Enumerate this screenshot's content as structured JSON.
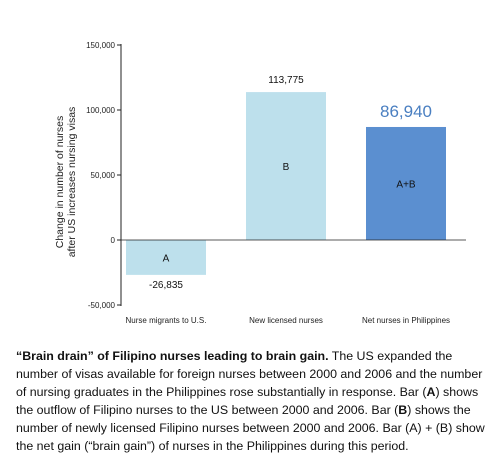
{
  "chart_data": {
    "type": "bar",
    "ylabel_lines": [
      "Change in number of nurses",
      "after US increases nursing visas"
    ],
    "ylim": [
      -50000,
      150000
    ],
    "yticks": [
      -50000,
      0,
      50000,
      100000,
      150000
    ],
    "ytick_labels": [
      "-50,000",
      "0",
      "50,000",
      "100,000",
      "150,000"
    ],
    "categories": [
      "Nurse migrants to U.S.",
      "New licensed nurses",
      "Net nurses in Philippines"
    ],
    "values": [
      -26835,
      113775,
      86940
    ],
    "value_labels": [
      "-26,835",
      "113,775",
      "86,940"
    ],
    "bar_letters": [
      "A",
      "B",
      "A+B"
    ],
    "colors": [
      "#bde0ec",
      "#bde0ec",
      "#5b8fd0"
    ],
    "highlight_color": "#4a7fc1"
  },
  "caption": {
    "lead": "“Brain drain” of Filipino nurses leading to brain gain.",
    "p1": " The US expanded the number of visas available for foreign nurses between 2000 and 2006 and the number of nursing graduates in the Philippines rose substantially in response. Bar (",
    "a1": "A",
    "p2": ") shows the outflow of Filipino nurses to the US between 2000 and 2006. Bar (",
    "b1": "B",
    "p3": ") shows the number of newly licensed Filipino nurses between 2000 and 2006. Bar (A) + (B) show the net gain (“brain gain”) of nurses in the Philippines during this period."
  }
}
